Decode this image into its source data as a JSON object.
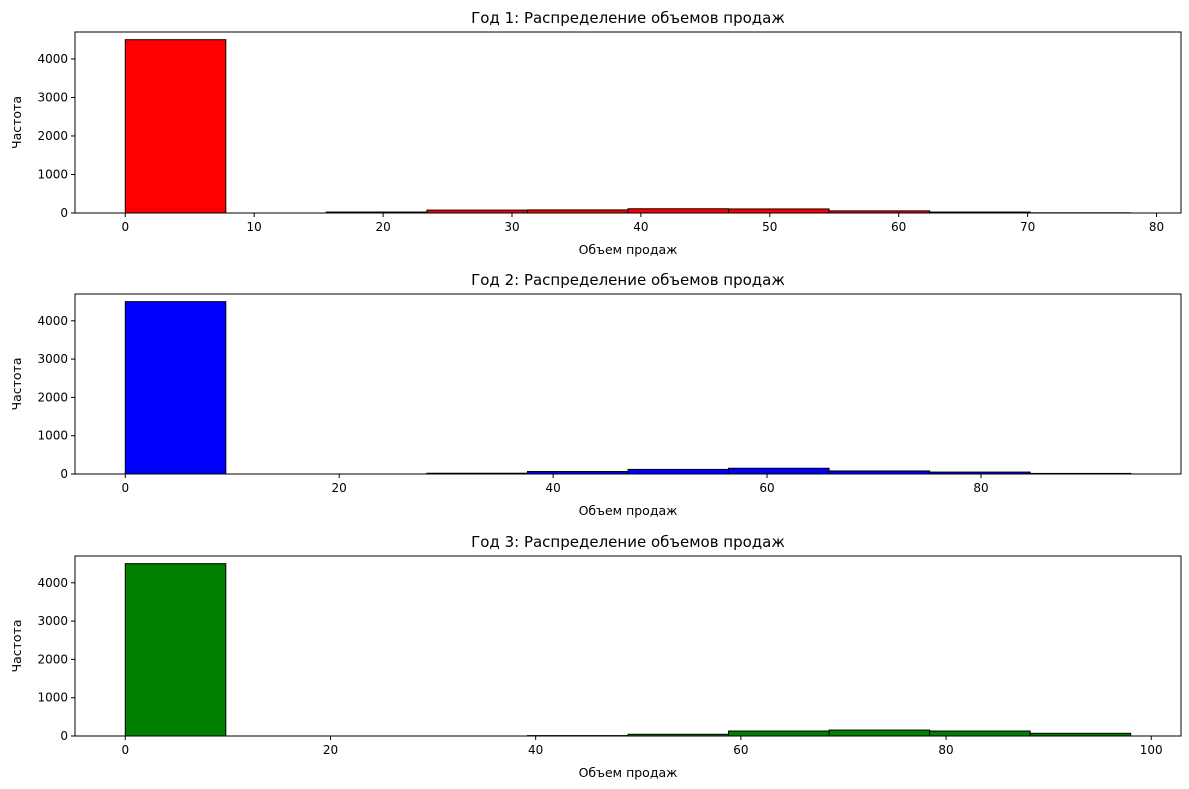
{
  "chart_data": [
    {
      "type": "bar",
      "title": "Год 1: Распределение объемов продаж",
      "xlabel": "Объем продаж",
      "ylabel": "Частота",
      "color": "#ff0000",
      "xlim": [
        -3.9,
        81.9
      ],
      "ylim": [
        0,
        4700
      ],
      "xticks": [
        0,
        10,
        20,
        30,
        40,
        50,
        60,
        70,
        80
      ],
      "yticks": [
        0,
        1000,
        2000,
        3000,
        4000
      ],
      "bins": [
        {
          "x0": 0.0,
          "x1": 7.8,
          "count": 4500
        },
        {
          "x0": 7.8,
          "x1": 15.6,
          "count": 0
        },
        {
          "x0": 15.6,
          "x1": 23.4,
          "count": 25
        },
        {
          "x0": 23.4,
          "x1": 31.2,
          "count": 75
        },
        {
          "x0": 31.2,
          "x1": 39.0,
          "count": 80
        },
        {
          "x0": 39.0,
          "x1": 46.8,
          "count": 110
        },
        {
          "x0": 46.8,
          "x1": 54.6,
          "count": 105
        },
        {
          "x0": 54.6,
          "x1": 62.4,
          "count": 55
        },
        {
          "x0": 62.4,
          "x1": 70.2,
          "count": 25
        },
        {
          "x0": 70.2,
          "x1": 78.0,
          "count": 5
        }
      ]
    },
    {
      "type": "bar",
      "title": "Год 2: Распределение объемов продаж",
      "xlabel": "Объем продаж",
      "ylabel": "Частота",
      "color": "#0000ff",
      "xlim": [
        -4.7,
        98.7
      ],
      "ylim": [
        0,
        4700
      ],
      "xticks": [
        0,
        20,
        40,
        60,
        80
      ],
      "yticks": [
        0,
        1000,
        2000,
        3000,
        4000
      ],
      "bins": [
        {
          "x0": 0.0,
          "x1": 9.4,
          "count": 4500
        },
        {
          "x0": 9.4,
          "x1": 18.8,
          "count": 0
        },
        {
          "x0": 18.8,
          "x1": 28.2,
          "count": 0
        },
        {
          "x0": 28.2,
          "x1": 37.6,
          "count": 20
        },
        {
          "x0": 37.6,
          "x1": 47.0,
          "count": 65
        },
        {
          "x0": 47.0,
          "x1": 56.4,
          "count": 120
        },
        {
          "x0": 56.4,
          "x1": 65.8,
          "count": 150
        },
        {
          "x0": 65.8,
          "x1": 75.2,
          "count": 80
        },
        {
          "x0": 75.2,
          "x1": 84.6,
          "count": 50
        },
        {
          "x0": 84.6,
          "x1": 94.0,
          "count": 15
        }
      ]
    },
    {
      "type": "bar",
      "title": "Год 3: Распределение объемов продаж",
      "xlabel": "Объем продаж",
      "ylabel": "Частота",
      "color": "#008000",
      "xlim": [
        -4.9,
        102.9
      ],
      "ylim": [
        0,
        4700
      ],
      "xticks": [
        0,
        20,
        40,
        60,
        80,
        100
      ],
      "yticks": [
        0,
        1000,
        2000,
        3000,
        4000
      ],
      "bins": [
        {
          "x0": 0.0,
          "x1": 9.8,
          "count": 4500
        },
        {
          "x0": 9.8,
          "x1": 19.6,
          "count": 0
        },
        {
          "x0": 19.6,
          "x1": 29.4,
          "count": 0
        },
        {
          "x0": 29.4,
          "x1": 39.2,
          "count": 0
        },
        {
          "x0": 39.2,
          "x1": 49.0,
          "count": 10
        },
        {
          "x0": 49.0,
          "x1": 58.8,
          "count": 45
        },
        {
          "x0": 58.8,
          "x1": 68.6,
          "count": 130
        },
        {
          "x0": 68.6,
          "x1": 78.4,
          "count": 155
        },
        {
          "x0": 78.4,
          "x1": 88.2,
          "count": 130
        },
        {
          "x0": 88.2,
          "x1": 98.0,
          "count": 70
        }
      ]
    }
  ]
}
